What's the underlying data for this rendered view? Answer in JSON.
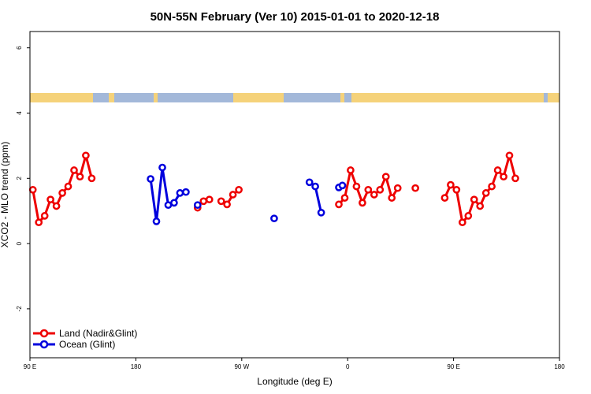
{
  "chart_data": {
    "type": "line",
    "title": "50N-55N February (Ver 10)   2015-01-01 to 2020-12-18",
    "xlabel": "Longitude (deg E)",
    "ylabel": "XCO2 - MLO trend (ppm)",
    "xlim": [
      90,
      540
    ],
    "ylim": [
      -3.5,
      6.5
    ],
    "x_ticks": [
      {
        "value": 90,
        "label": "90 E"
      },
      {
        "value": 180,
        "label": "180"
      },
      {
        "value": 270,
        "label": "90 W"
      },
      {
        "value": 360,
        "label": "0"
      },
      {
        "value": 450,
        "label": "90 E"
      },
      {
        "value": 540,
        "label": "180"
      }
    ],
    "y_ticks": [
      {
        "value": -2,
        "label": "-2"
      },
      {
        "value": 0,
        "label": "0"
      },
      {
        "value": 2,
        "label": "2"
      },
      {
        "value": 4,
        "label": "4"
      },
      {
        "value": 6,
        "label": "6"
      }
    ],
    "land_ocean_strip": {
      "land_color": "#f5d27a",
      "ocean_color": "#a3b8d9"
    },
    "series": [
      {
        "name": "Land (Nadir&Glint)",
        "color": "#ee0000",
        "segments": [
          [
            [
              92.5,
              1.65
            ],
            [
              97.5,
              0.65
            ],
            [
              102.5,
              0.85
            ],
            [
              107.5,
              1.35
            ],
            [
              112.5,
              1.15
            ],
            [
              117.5,
              1.55
            ],
            [
              122.5,
              1.75
            ],
            [
              127.5,
              2.25
            ],
            [
              132.5,
              2.05
            ],
            [
              137.5,
              2.7
            ],
            [
              142.5,
              2.0
            ]
          ],
          [
            [
              232.5,
              1.1
            ]
          ],
          [
            [
              237.5,
              1.3
            ],
            [
              242.5,
              1.35
            ]
          ],
          [
            [
              252.5,
              1.3
            ],
            [
              257.5,
              1.2
            ],
            [
              262.5,
              1.5
            ],
            [
              267.5,
              1.65
            ]
          ],
          [
            [
              352.5,
              1.2
            ],
            [
              357.5,
              1.4
            ],
            [
              362.5,
              2.25
            ],
            [
              367.5,
              1.75
            ],
            [
              372.5,
              1.25
            ],
            [
              377.5,
              1.65
            ],
            [
              382.5,
              1.5
            ],
            [
              387.5,
              1.65
            ],
            [
              392.5,
              2.05
            ],
            [
              397.5,
              1.4
            ],
            [
              402.5,
              1.7
            ]
          ],
          [
            [
              417.5,
              1.7
            ]
          ],
          [
            [
              442.5,
              1.4
            ],
            [
              447.5,
              1.8
            ],
            [
              452.5,
              1.65
            ],
            [
              457.5,
              0.65
            ],
            [
              462.5,
              0.85
            ],
            [
              467.5,
              1.35
            ],
            [
              472.5,
              1.15
            ],
            [
              477.5,
              1.55
            ],
            [
              482.5,
              1.75
            ],
            [
              487.5,
              2.25
            ],
            [
              492.5,
              2.05
            ],
            [
              497.5,
              2.7
            ],
            [
              502.5,
              2.0
            ]
          ]
        ]
      },
      {
        "name": "Ocean (Glint)",
        "color": "#0000dd",
        "segments": [
          [
            [
              192.5,
              1.98
            ],
            [
              197.5,
              0.68
            ],
            [
              202.5,
              2.33
            ],
            [
              207.5,
              1.18
            ],
            [
              212.5,
              1.25
            ],
            [
              217.5,
              1.55
            ],
            [
              222.5,
              1.58
            ]
          ],
          [
            [
              232.5,
              1.18
            ]
          ],
          [
            [
              297.5,
              0.77
            ]
          ],
          [
            [
              327.5,
              1.88
            ],
            [
              332.5,
              1.75
            ],
            [
              337.5,
              0.95
            ]
          ],
          [
            [
              352.5,
              1.72
            ],
            [
              355.5,
              1.78
            ]
          ]
        ]
      }
    ],
    "legend": {
      "position": "bottom-left"
    }
  }
}
